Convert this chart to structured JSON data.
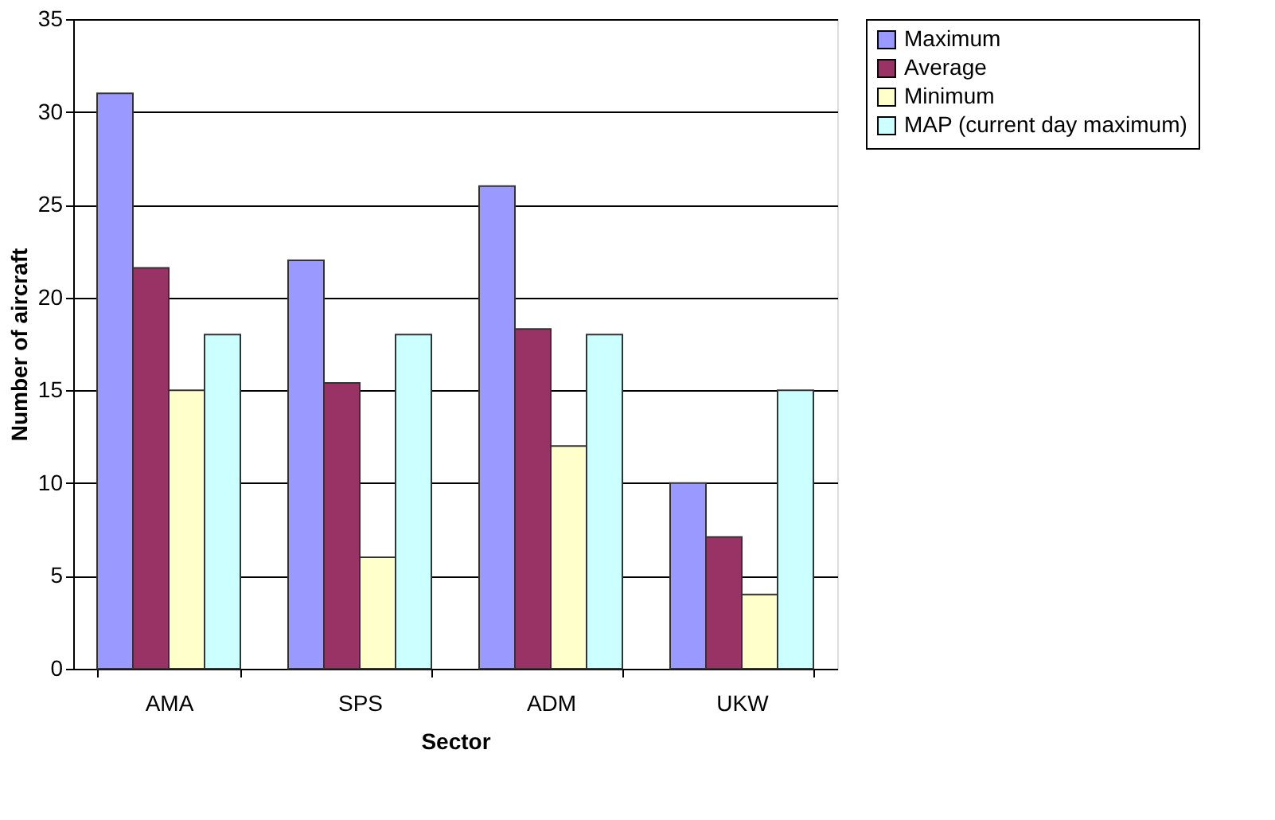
{
  "chart_data": {
    "type": "bar",
    "xlabel": "Sector",
    "ylabel": "Number of aircraft",
    "categories": [
      "AMA",
      "SPS",
      "ADM",
      "UKW"
    ],
    "series": [
      {
        "name": "Maximum",
        "color": "#9999ff",
        "values": [
          31,
          22,
          26,
          10
        ]
      },
      {
        "name": "Average",
        "color": "#993366",
        "values": [
          21.6,
          15.4,
          18.3,
          7.1
        ]
      },
      {
        "name": "Minimum",
        "color": "#ffffcc",
        "values": [
          15,
          6,
          12,
          4
        ]
      },
      {
        "name": "MAP (current day maximum)",
        "color": "#ccffff",
        "values": [
          18,
          18,
          18,
          15
        ]
      }
    ],
    "ylim": [
      0,
      35
    ],
    "yticks": [
      0,
      5,
      10,
      15,
      20,
      25,
      30,
      35
    ],
    "grid": "y",
    "legend": "right"
  }
}
